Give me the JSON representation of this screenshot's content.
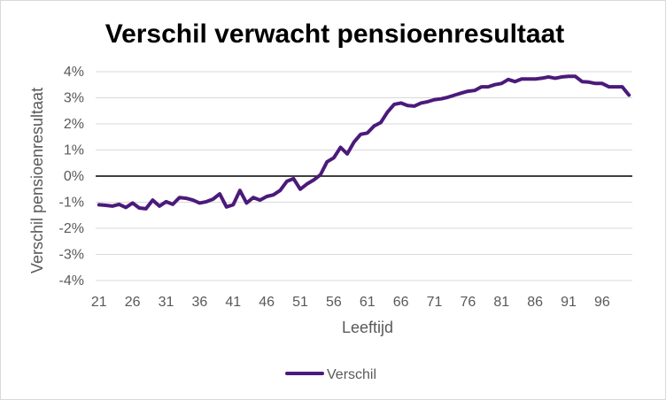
{
  "chart_data": {
    "type": "line",
    "title": "Verschil verwacht pensioenresultaat",
    "xlabel": "Leeftijd",
    "ylabel": "Verschil pensioenresultaat",
    "ylim": [
      -0.04,
      0.04
    ],
    "y_ticks": [
      0.04,
      0.03,
      0.02,
      0.01,
      0,
      -0.01,
      -0.02,
      -0.03,
      -0.04
    ],
    "y_tick_labels": [
      "4%",
      "3%",
      "2%",
      "1%",
      "0%",
      "-1%",
      "-2%",
      "-3%",
      "-4%"
    ],
    "x_ticks": [
      21,
      26,
      31,
      36,
      41,
      46,
      51,
      56,
      61,
      66,
      71,
      76,
      81,
      86,
      91,
      96
    ],
    "x_tick_labels": [
      "21",
      "26",
      "31",
      "36",
      "41",
      "46",
      "51",
      "56",
      "61",
      "66",
      "71",
      "76",
      "81",
      "86",
      "91",
      "96"
    ],
    "grid": true,
    "legend_position": "bottom",
    "series": [
      {
        "name": "Verschil",
        "color": "#4b1a7a",
        "x": [
          21,
          22,
          23,
          24,
          25,
          26,
          27,
          28,
          29,
          30,
          31,
          32,
          33,
          34,
          35,
          36,
          37,
          38,
          39,
          40,
          41,
          42,
          43,
          44,
          45,
          46,
          47,
          48,
          49,
          50,
          51,
          52,
          53,
          54,
          55,
          56,
          57,
          58,
          59,
          60,
          61,
          62,
          63,
          64,
          65,
          66,
          67,
          68,
          69,
          70,
          71,
          72,
          73,
          74,
          75,
          76,
          77,
          78,
          79,
          80,
          81,
          82,
          83,
          84,
          85,
          86,
          87,
          88,
          89,
          90,
          91,
          92,
          93,
          94,
          95,
          96,
          97,
          98,
          99,
          100
        ],
        "values": [
          -0.011,
          -0.0112,
          -0.0115,
          -0.0108,
          -0.012,
          -0.0103,
          -0.0122,
          -0.0125,
          -0.0092,
          -0.0115,
          -0.0098,
          -0.0108,
          -0.0082,
          -0.0085,
          -0.0092,
          -0.0103,
          -0.0098,
          -0.0088,
          -0.0068,
          -0.0118,
          -0.011,
          -0.0055,
          -0.0103,
          -0.0082,
          -0.0092,
          -0.0078,
          -0.0072,
          -0.0055,
          -0.002,
          -0.001,
          -0.005,
          -0.003,
          -0.0015,
          0.0005,
          0.0055,
          0.007,
          0.011,
          0.0085,
          0.013,
          0.016,
          0.0165,
          0.0192,
          0.0205,
          0.0245,
          0.0275,
          0.028,
          0.027,
          0.0268,
          0.028,
          0.0285,
          0.0293,
          0.0296,
          0.0302,
          0.031,
          0.0318,
          0.0325,
          0.0328,
          0.0342,
          0.0342,
          0.035,
          0.0355,
          0.037,
          0.0362,
          0.0372,
          0.0372,
          0.0372,
          0.0375,
          0.038,
          0.0375,
          0.038,
          0.0382,
          0.0382,
          0.0362,
          0.036,
          0.0355,
          0.0355,
          0.0342,
          0.0342,
          0.0342,
          0.031
        ]
      }
    ]
  }
}
